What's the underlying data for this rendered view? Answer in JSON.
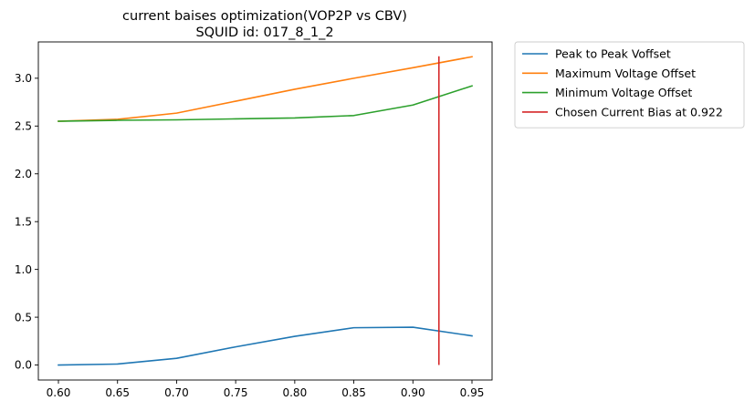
{
  "chart_data": {
    "type": "line",
    "title": "current baises optimization(VOP2P vs CBV)",
    "subtitle": "SQUID id: 017_8_1_2",
    "xlabel": "",
    "ylabel": "",
    "xlim": [
      0.583,
      0.967
    ],
    "ylim": [
      -0.157,
      3.38
    ],
    "grid": false,
    "legend_placement": "outside-top-right",
    "xticks": [
      "0.60",
      "0.65",
      "0.70",
      "0.75",
      "0.80",
      "0.85",
      "0.90",
      "0.95"
    ],
    "yticks": [
      "0.0",
      "0.5",
      "1.0",
      "1.5",
      "2.0",
      "2.5",
      "3.0"
    ],
    "x": [
      0.6,
      0.65,
      0.7,
      0.75,
      0.8,
      0.85,
      0.9,
      0.95
    ],
    "series": [
      {
        "name": "Peak to Peak Voffset",
        "color": "#1f77b4",
        "values": [
          0.0,
          0.01,
          0.07,
          0.19,
          0.3,
          0.39,
          0.395,
          0.305
        ]
      },
      {
        "name": "Maximum Voltage Offset",
        "color": "#ff7f0e",
        "values": [
          2.55,
          2.57,
          2.635,
          2.76,
          2.885,
          3.0,
          3.11,
          3.225
        ]
      },
      {
        "name": "Minimum Voltage Offset",
        "color": "#2ca02c",
        "values": [
          2.55,
          2.56,
          2.565,
          2.575,
          2.585,
          2.61,
          2.72,
          2.92
        ]
      }
    ],
    "vline": {
      "name": "Chosen Current Bias at 0.922",
      "color": "#d62728",
      "x": 0.922,
      "ymin": 0.0,
      "ymax": 3.23
    }
  }
}
